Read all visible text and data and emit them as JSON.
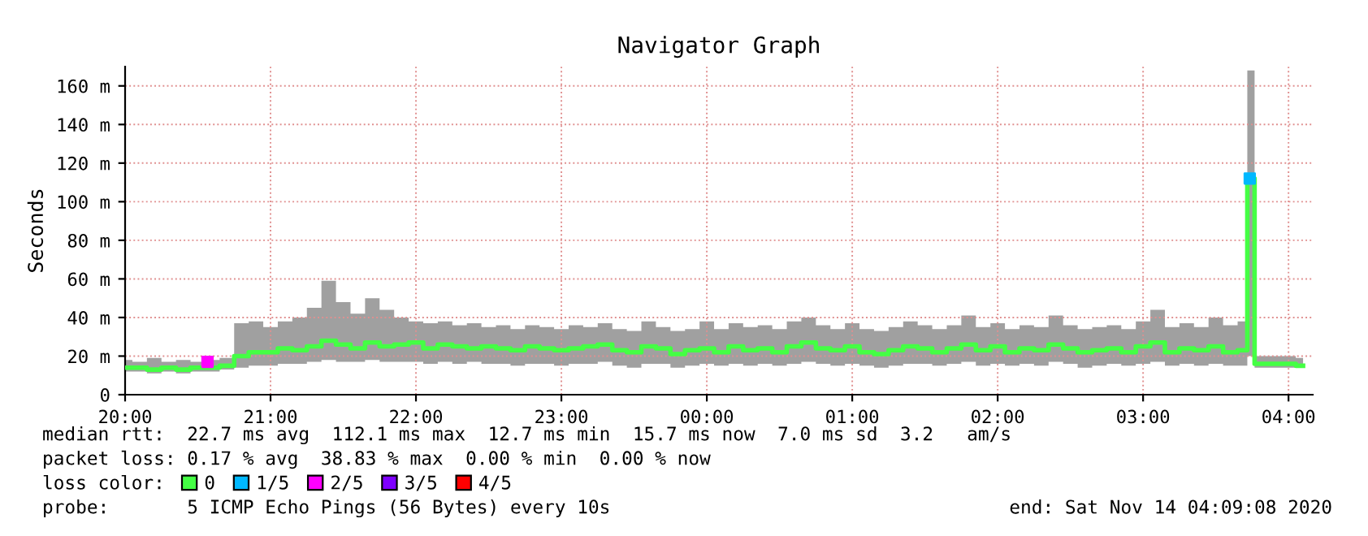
{
  "chart_data": {
    "type": "line",
    "title": "Navigator Graph",
    "ylabel": "Seconds",
    "xlim": [
      "2020-11-13T20:00",
      "2020-11-14T04:10"
    ],
    "ylim": [
      0,
      170
    ],
    "xticks": [
      {
        "value": "2020-11-13T20:00",
        "label": "20:00"
      },
      {
        "value": "2020-11-13T21:00",
        "label": "21:00"
      },
      {
        "value": "2020-11-13T22:00",
        "label": "22:00"
      },
      {
        "value": "2020-11-13T23:00",
        "label": "23:00"
      },
      {
        "value": "2020-11-14T00:00",
        "label": "00:00"
      },
      {
        "value": "2020-11-14T01:00",
        "label": "01:00"
      },
      {
        "value": "2020-11-14T02:00",
        "label": "02:00"
      },
      {
        "value": "2020-11-14T03:00",
        "label": "03:00"
      },
      {
        "value": "2020-11-14T04:00",
        "label": "04:00"
      }
    ],
    "yticks": [
      0,
      {
        "value": 20,
        "label": "20 m"
      },
      {
        "value": 40,
        "label": "40 m"
      },
      {
        "value": 60,
        "label": "60 m"
      },
      {
        "value": 80,
        "label": "80 m"
      },
      {
        "value": 100,
        "label": "100 m"
      },
      {
        "value": 120,
        "label": "120 m"
      },
      {
        "value": 140,
        "label": "140 m"
      },
      {
        "value": 160,
        "label": "160 m"
      }
    ],
    "grid": true,
    "legend": "bottom",
    "series": [
      {
        "name": "0",
        "color": "#44ff44",
        "x": [
          "2020-11-13T20:00",
          "2020-11-13T20:06",
          "2020-11-13T20:12",
          "2020-11-13T20:18",
          "2020-11-13T20:24",
          "2020-11-13T20:30",
          "2020-11-13T20:36",
          "2020-11-13T20:42",
          "2020-11-13T20:48",
          "2020-11-13T20:54",
          "2020-11-13T21:00",
          "2020-11-13T21:06",
          "2020-11-13T21:12",
          "2020-11-13T21:18",
          "2020-11-13T21:24",
          "2020-11-13T21:30",
          "2020-11-13T21:36",
          "2020-11-13T21:42",
          "2020-11-13T21:48",
          "2020-11-13T21:54",
          "2020-11-13T22:00",
          "2020-11-13T22:06",
          "2020-11-13T22:12",
          "2020-11-13T22:18",
          "2020-11-13T22:24",
          "2020-11-13T22:30",
          "2020-11-13T22:36",
          "2020-11-13T22:42",
          "2020-11-13T22:48",
          "2020-11-13T22:54",
          "2020-11-13T23:00",
          "2020-11-13T23:06",
          "2020-11-13T23:12",
          "2020-11-13T23:18",
          "2020-11-13T23:24",
          "2020-11-13T23:30",
          "2020-11-13T23:36",
          "2020-11-13T23:42",
          "2020-11-13T23:48",
          "2020-11-13T23:54",
          "2020-11-14T00:00",
          "2020-11-14T00:06",
          "2020-11-14T00:12",
          "2020-11-14T00:18",
          "2020-11-14T00:24",
          "2020-11-14T00:30",
          "2020-11-14T00:36",
          "2020-11-14T00:42",
          "2020-11-14T00:48",
          "2020-11-14T00:54",
          "2020-11-14T01:00",
          "2020-11-14T01:06",
          "2020-11-14T01:12",
          "2020-11-14T01:18",
          "2020-11-14T01:24",
          "2020-11-14T01:30",
          "2020-11-14T01:36",
          "2020-11-14T01:42",
          "2020-11-14T01:48",
          "2020-11-14T01:54",
          "2020-11-14T02:00",
          "2020-11-14T02:06",
          "2020-11-14T02:12",
          "2020-11-14T02:18",
          "2020-11-14T02:24",
          "2020-11-14T02:30",
          "2020-11-14T02:36",
          "2020-11-14T02:42",
          "2020-11-14T02:48",
          "2020-11-14T02:54",
          "2020-11-14T03:00",
          "2020-11-14T03:06",
          "2020-11-14T03:12",
          "2020-11-14T03:18",
          "2020-11-14T03:24",
          "2020-11-14T03:30",
          "2020-11-14T03:36",
          "2020-11-14T03:42",
          "2020-11-14T03:44",
          "2020-11-14T03:48",
          "2020-11-14T03:54",
          "2020-11-14T04:00",
          "2020-11-14T04:06"
        ],
        "values": [
          14,
          14,
          13,
          14,
          13,
          14,
          14,
          15,
          20,
          22,
          22,
          24,
          23,
          25,
          28,
          26,
          24,
          27,
          25,
          26,
          27,
          24,
          26,
          25,
          24,
          25,
          24,
          23,
          25,
          24,
          23,
          24,
          25,
          26,
          23,
          22,
          25,
          24,
          21,
          23,
          24,
          22,
          25,
          23,
          24,
          22,
          25,
          27,
          24,
          23,
          25,
          22,
          21,
          23,
          25,
          24,
          22,
          24,
          26,
          23,
          25,
          22,
          24,
          23,
          26,
          24,
          22,
          23,
          24,
          22,
          25,
          27,
          22,
          24,
          23,
          25,
          22,
          23,
          112,
          16,
          16,
          16,
          15
        ],
        "lower": [
          12,
          12,
          11,
          12,
          11,
          12,
          12,
          13,
          14,
          15,
          15,
          16,
          16,
          17,
          18,
          17,
          17,
          18,
          17,
          17,
          17,
          16,
          17,
          16,
          17,
          16,
          16,
          15,
          16,
          16,
          15,
          16,
          16,
          17,
          15,
          14,
          16,
          16,
          14,
          15,
          16,
          15,
          16,
          15,
          16,
          15,
          16,
          17,
          16,
          15,
          16,
          15,
          14,
          15,
          16,
          16,
          15,
          16,
          17,
          15,
          16,
          15,
          16,
          15,
          17,
          16,
          14,
          15,
          16,
          15,
          16,
          17,
          15,
          16,
          15,
          16,
          15,
          15,
          20,
          14,
          14,
          14,
          14
        ],
        "upper": [
          18,
          17,
          19,
          17,
          18,
          17,
          18,
          19,
          37,
          38,
          35,
          38,
          40,
          45,
          59,
          48,
          42,
          50,
          44,
          40,
          38,
          37,
          38,
          36,
          37,
          35,
          36,
          34,
          36,
          35,
          34,
          36,
          35,
          37,
          34,
          33,
          38,
          35,
          33,
          34,
          38,
          34,
          37,
          35,
          36,
          34,
          38,
          40,
          36,
          34,
          37,
          34,
          33,
          35,
          38,
          36,
          34,
          36,
          41,
          35,
          37,
          34,
          36,
          35,
          41,
          36,
          34,
          35,
          36,
          34,
          38,
          44,
          35,
          37,
          35,
          40,
          36,
          38,
          168,
          20,
          20,
          20,
          19
        ]
      },
      {
        "name": "1/5",
        "color": "#00b8ff",
        "type": "scatter",
        "x": [
          "2020-11-14T03:44"
        ],
        "values": [
          112
        ]
      },
      {
        "name": "2/5",
        "color": "#ff00ff",
        "type": "scatter",
        "x": [
          "2020-11-13T20:34"
        ],
        "values": [
          17
        ]
      },
      {
        "name": "3/5",
        "color": "#7e00ff",
        "type": "scatter"
      },
      {
        "name": "4/5",
        "color": "#ff0000",
        "type": "scatter"
      }
    ],
    "legend_title": "loss color:",
    "annotations": [
      "median rtt:  22.7 ms avg  112.1 ms max  12.7 ms min  15.7 ms now  7.0 ms sd  3.2   am/s",
      "packet loss: 0.17 % avg  38.83 % max  0.00 % min  0.00 % now",
      "probe:       5 ICMP Echo Pings (56 Bytes) every 10s",
      "end: Sat Nov 14 04:09:08 2020"
    ]
  }
}
